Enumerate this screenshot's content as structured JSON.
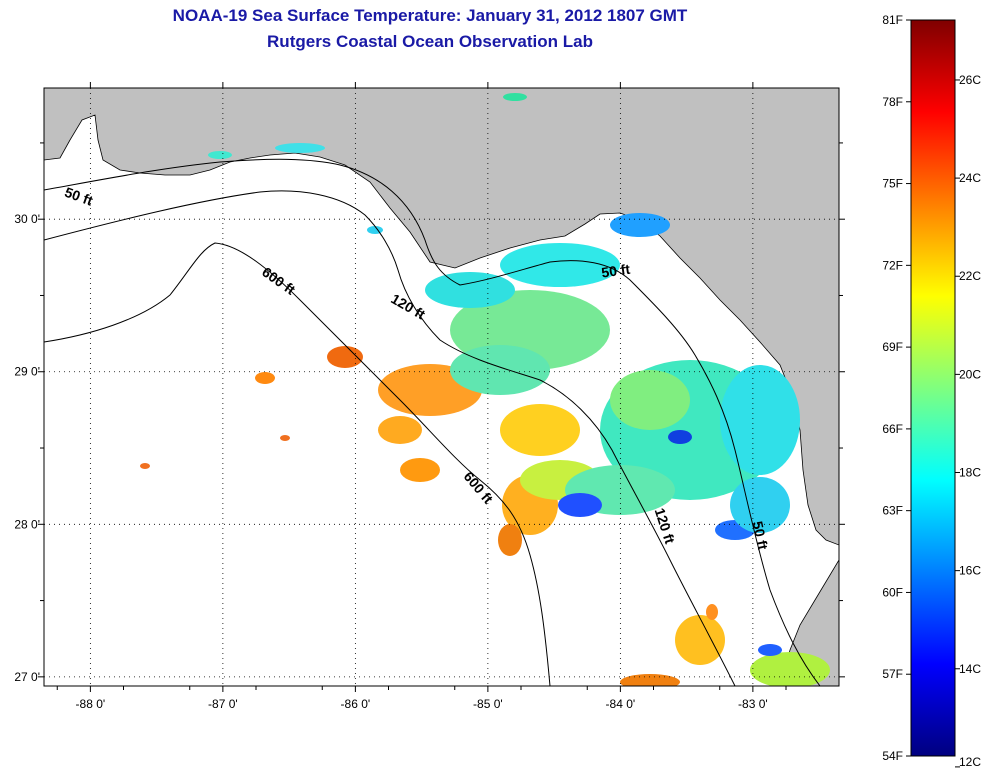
{
  "header": {
    "title": "NOAA-19 Sea Surface Temperature:  January 31, 2012 1807 GMT",
    "subtitle": "Rutgers Coastal Ocean Observation Lab"
  },
  "map": {
    "lon_range": [
      -88.35,
      -82.35
    ],
    "lat_range": [
      26.94,
      30.86
    ],
    "lon_ticks": [
      -88,
      -87,
      -86,
      -85,
      -84,
      -83
    ],
    "lat_ticks": [
      27,
      28,
      29,
      30
    ],
    "lon_tick_labels": [
      "-88 0'",
      "-87 0'",
      "-86 0'",
      "-85 0'",
      "-84 0'",
      "-83 0'"
    ],
    "lat_tick_labels": [
      "27 0'",
      "28 0'",
      "29 0'",
      "30 0'"
    ],
    "grid": "dotted",
    "land_color": "#c0c0c0",
    "ocean_color": "#ffffff",
    "contour_labels": [
      {
        "text": "50 ft",
        "lon": -88.1,
        "lat": 30.12,
        "angle": 20
      },
      {
        "text": "600 ft",
        "lon": -86.6,
        "lat": 29.57,
        "angle": 35
      },
      {
        "text": "120 ft",
        "lon": -85.62,
        "lat": 29.4,
        "angle": 30
      },
      {
        "text": "50 ft",
        "lon": -84.03,
        "lat": 29.63,
        "angle": -8
      },
      {
        "text": "600 ft",
        "lon": -85.1,
        "lat": 28.22,
        "angle": 50
      },
      {
        "text": "120 ft",
        "lon": -83.7,
        "lat": 27.98,
        "angle": 72
      },
      {
        "text": "50 ft",
        "lon": -82.98,
        "lat": 27.92,
        "angle": 78
      }
    ]
  },
  "colorbar": {
    "min_f": 54,
    "max_f": 81,
    "min_c": 12,
    "max_c": 27,
    "f_labels": [
      "81F",
      "78F",
      "75F",
      "72F",
      "69F",
      "66F",
      "63F",
      "60F",
      "57F",
      "54F"
    ],
    "c_labels": [
      "26C",
      "24C",
      "22C",
      "20C",
      "18C",
      "16C",
      "14C",
      "12C"
    ],
    "stops": [
      "#00007f",
      "#0000ff",
      "#007fff",
      "#00ffff",
      "#7fff7f",
      "#ffff00",
      "#ff7f00",
      "#ff0000",
      "#7f0000"
    ]
  }
}
